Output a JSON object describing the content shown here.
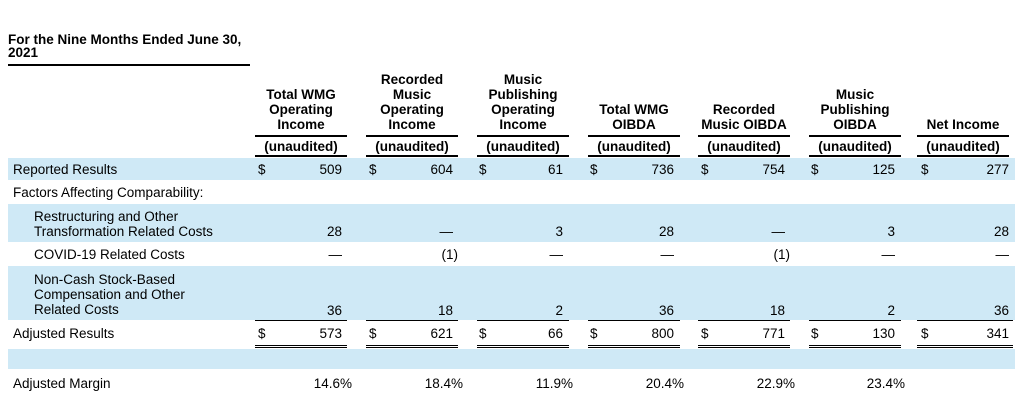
{
  "title": "For the Nine Months Ended June 30, 2021",
  "columns": [
    {
      "heading": "Total WMG Operating Income",
      "sub": "(unaudited)"
    },
    {
      "heading": "Recorded Music Operating Income",
      "sub": "(unaudited)"
    },
    {
      "heading": "Music Publishing Operating Income",
      "sub": "(unaudited)"
    },
    {
      "heading": "Total WMG OIBDA",
      "sub": "(unaudited)"
    },
    {
      "heading": "Recorded Music OIBDA",
      "sub": "(unaudited)"
    },
    {
      "heading": "Music Publishing OIBDA",
      "sub": "(unaudited)"
    },
    {
      "heading": "Net Income",
      "sub": "(unaudited)"
    }
  ],
  "rows": {
    "reported": {
      "label": "Reported Results",
      "currency": "$",
      "values": [
        "509",
        "604",
        "61",
        "736",
        "754",
        "125",
        "277"
      ]
    },
    "factors": {
      "label": "Factors Affecting Comparability:"
    },
    "restructuring": {
      "label": "Restructuring and Other Transformation Related Costs",
      "values": [
        "28",
        "—",
        "3",
        "28",
        "—",
        "3",
        "28"
      ]
    },
    "covid": {
      "label": "COVID-19 Related Costs",
      "values": [
        "—",
        "(1)",
        "—",
        "—",
        "(1)",
        "—",
        "—"
      ]
    },
    "stock": {
      "label": "Non-Cash Stock-Based Compensation and Other Related Costs",
      "values": [
        "36",
        "18",
        "2",
        "36",
        "18",
        "2",
        "36"
      ]
    },
    "adjusted": {
      "label": "Adjusted Results",
      "currency": "$",
      "values": [
        "573",
        "621",
        "66",
        "800",
        "771",
        "130",
        "341"
      ]
    },
    "margin": {
      "label": "Adjusted Margin",
      "values": [
        "14.6%",
        "18.4%",
        "11.9%",
        "20.4%",
        "22.9%",
        "23.4%",
        ""
      ]
    }
  }
}
